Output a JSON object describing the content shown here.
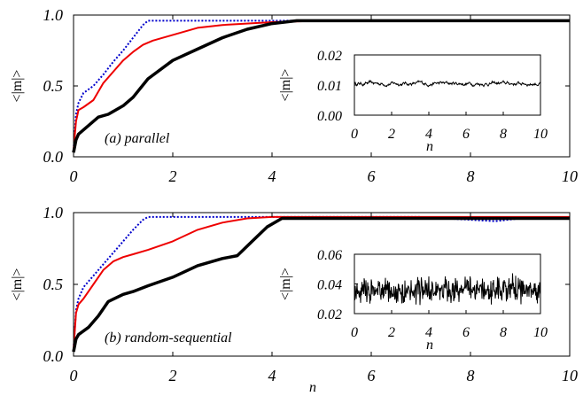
{
  "chart_data": [
    {
      "type": "line",
      "annotation": "(a) parallel",
      "xlabel": "",
      "ylabel": "<|m|>",
      "xlim": [
        0,
        10
      ],
      "ylim": [
        0,
        1
      ],
      "xticks": [
        "0",
        "2",
        "4",
        "6",
        "8",
        "10"
      ],
      "yticks": [
        "0.0",
        "0.5",
        "1.0"
      ],
      "series": [
        {
          "color": "#0000cc",
          "style": "dotted",
          "x": [
            0,
            0.05,
            0.1,
            0.2,
            0.4,
            0.6,
            0.8,
            1.0,
            1.2,
            1.4,
            1.5,
            2,
            3,
            4,
            5,
            6,
            7,
            8,
            9,
            10
          ],
          "y": [
            0.05,
            0.3,
            0.38,
            0.45,
            0.5,
            0.58,
            0.67,
            0.75,
            0.84,
            0.93,
            0.96,
            0.96,
            0.96,
            0.96,
            0.96,
            0.96,
            0.96,
            0.96,
            0.96,
            0.96
          ]
        },
        {
          "color": "#ee0000",
          "style": "solid",
          "x": [
            0,
            0.05,
            0.1,
            0.2,
            0.4,
            0.6,
            0.8,
            1.0,
            1.2,
            1.4,
            1.6,
            2,
            2.5,
            3,
            4,
            5,
            6,
            7,
            8,
            9,
            10
          ],
          "y": [
            0.05,
            0.25,
            0.33,
            0.35,
            0.4,
            0.52,
            0.6,
            0.68,
            0.74,
            0.79,
            0.82,
            0.86,
            0.91,
            0.93,
            0.95,
            0.96,
            0.96,
            0.96,
            0.96,
            0.96,
            0.96
          ]
        },
        {
          "color": "#000000",
          "style": "solid",
          "x": [
            0,
            0.05,
            0.1,
            0.3,
            0.5,
            0.7,
            1.0,
            1.2,
            1.5,
            2,
            2.5,
            3,
            3.5,
            4,
            4.5,
            5,
            6,
            7,
            8,
            9,
            10
          ],
          "y": [
            0.03,
            0.12,
            0.16,
            0.22,
            0.28,
            0.3,
            0.36,
            0.42,
            0.55,
            0.68,
            0.76,
            0.84,
            0.9,
            0.94,
            0.96,
            0.96,
            0.96,
            0.96,
            0.96,
            0.96,
            0.96
          ]
        }
      ],
      "inset": {
        "type": "line",
        "xlabel": "n",
        "ylabel": "<|m|>",
        "xlim": [
          0,
          10
        ],
        "ylim": [
          0,
          0.02
        ],
        "xticks": [
          "0",
          "2",
          "4",
          "6",
          "8",
          "10"
        ],
        "yticks": [
          "0.00",
          "0.01",
          "0.02"
        ],
        "series": [
          {
            "color": "#000000",
            "mean": 0.0105,
            "amplitude": 0.0008
          }
        ]
      }
    },
    {
      "type": "line",
      "annotation": "(b) random-sequential",
      "xlabel": "n",
      "ylabel": "<|m|>",
      "xlim": [
        0,
        10
      ],
      "ylim": [
        0,
        1
      ],
      "xticks": [
        "0",
        "2",
        "4",
        "6",
        "8",
        "10"
      ],
      "yticks": [
        "0.0",
        "0.5",
        "1.0"
      ],
      "series": [
        {
          "color": "#0000cc",
          "style": "dotted",
          "x": [
            0,
            0.05,
            0.1,
            0.2,
            0.4,
            0.6,
            0.8,
            1.0,
            1.2,
            1.4,
            1.5,
            2,
            3,
            4,
            5,
            6,
            7,
            8,
            8.5,
            9,
            10
          ],
          "y": [
            0.05,
            0.32,
            0.4,
            0.48,
            0.56,
            0.64,
            0.72,
            0.8,
            0.88,
            0.95,
            0.97,
            0.97,
            0.97,
            0.97,
            0.97,
            0.97,
            0.97,
            0.95,
            0.94,
            0.96,
            0.96
          ]
        },
        {
          "color": "#ee0000",
          "style": "solid",
          "x": [
            0,
            0.05,
            0.1,
            0.2,
            0.4,
            0.6,
            0.8,
            1.0,
            1.2,
            1.5,
            2,
            2.5,
            3,
            3.5,
            4,
            5,
            6,
            7,
            8,
            9,
            10
          ],
          "y": [
            0.05,
            0.3,
            0.36,
            0.4,
            0.5,
            0.6,
            0.66,
            0.69,
            0.71,
            0.74,
            0.8,
            0.88,
            0.93,
            0.96,
            0.97,
            0.97,
            0.97,
            0.97,
            0.97,
            0.97,
            0.97
          ]
        },
        {
          "color": "#000000",
          "style": "solid",
          "x": [
            0,
            0.05,
            0.1,
            0.3,
            0.5,
            0.7,
            1.0,
            1.2,
            1.5,
            2,
            2.5,
            3,
            3.3,
            3.6,
            3.9,
            4.2,
            5,
            6,
            7,
            8,
            9,
            10
          ],
          "y": [
            0.03,
            0.12,
            0.15,
            0.2,
            0.28,
            0.38,
            0.43,
            0.45,
            0.49,
            0.55,
            0.63,
            0.68,
            0.7,
            0.8,
            0.9,
            0.96,
            0.96,
            0.96,
            0.96,
            0.96,
            0.96,
            0.96
          ]
        }
      ],
      "inset": {
        "type": "line",
        "xlabel": "n",
        "ylabel": "<|m|>",
        "xlim": [
          0,
          10
        ],
        "ylim": [
          0.02,
          0.06
        ],
        "xticks": [
          "0",
          "2",
          "4",
          "6",
          "8",
          "10"
        ],
        "yticks": [
          "0.02",
          "0.04",
          "0.06"
        ],
        "series": [
          {
            "color": "#000000",
            "mean": 0.036,
            "amplitude": 0.006
          }
        ]
      }
    }
  ]
}
